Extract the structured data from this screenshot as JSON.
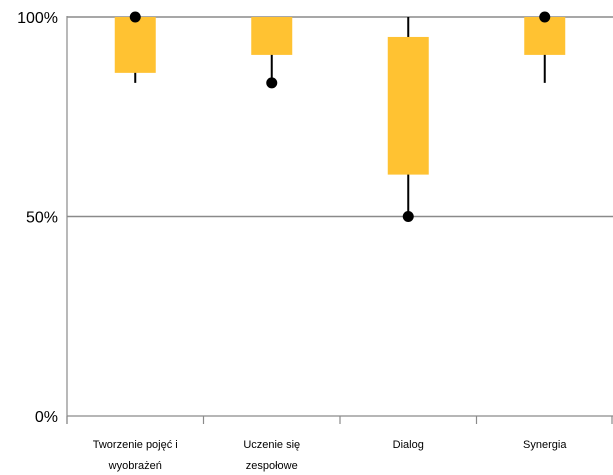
{
  "chart_data": {
    "type": "box",
    "title": "",
    "xlabel": "",
    "ylabel": "",
    "ylim": [
      0,
      100
    ],
    "y_ticks": [
      {
        "value": 0,
        "label": "0%"
      },
      {
        "value": 50,
        "label": "50%"
      },
      {
        "value": 100,
        "label": "100%"
      }
    ],
    "grid": "horizontal",
    "legend": "none",
    "box_color": "#FFC232",
    "categories": [
      {
        "label_lines": [
          "Tworzenie pojęć i",
          "wyobrażeń"
        ],
        "whisker_low": 83.5,
        "q1": 86,
        "q3": 100,
        "whisker_high": 100,
        "points": [
          100
        ]
      },
      {
        "label_lines": [
          "Uczenie się",
          "zespołowe"
        ],
        "whisker_low": 83.5,
        "q1": 90.5,
        "q3": 100,
        "whisker_high": 100,
        "points": [
          83.5
        ]
      },
      {
        "label_lines": [
          "Dialog"
        ],
        "whisker_low": 50,
        "q1": 60.5,
        "q3": 95,
        "whisker_high": 100,
        "points": [
          50
        ]
      },
      {
        "label_lines": [
          "Synergia"
        ],
        "whisker_low": 83.5,
        "q1": 90.5,
        "q3": 100,
        "whisker_high": 100,
        "points": [
          100
        ]
      }
    ]
  }
}
